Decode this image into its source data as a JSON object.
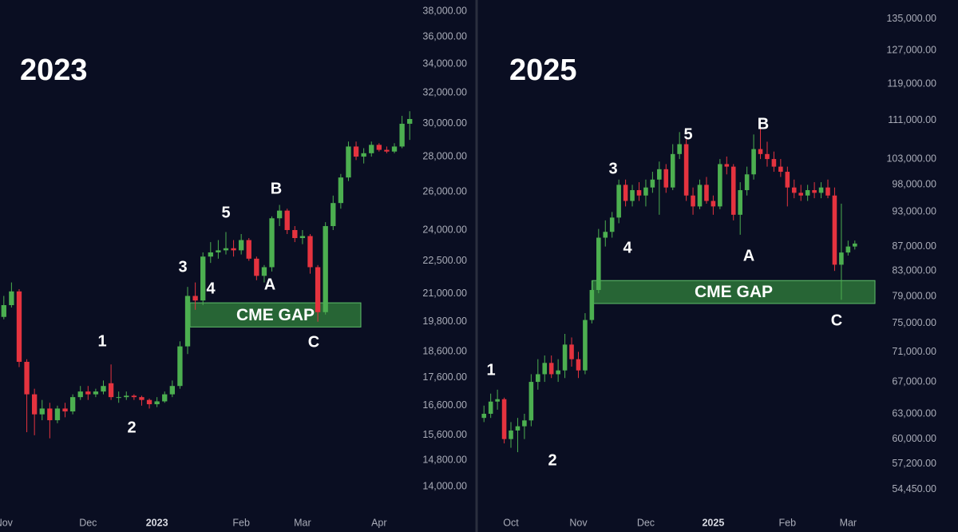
{
  "chart_data": [
    {
      "type": "candlestick",
      "title": "2023",
      "log_scale": true,
      "grid": false,
      "up_color": "#4caf50",
      "down_color": "#e5333f",
      "categories": [
        "Nov",
        null,
        null,
        null,
        null,
        null,
        null,
        null,
        null,
        null,
        null,
        "Dec",
        null,
        null,
        null,
        null,
        null,
        null,
        null,
        null,
        "2023",
        null,
        null,
        null,
        null,
        null,
        null,
        null,
        null,
        null,
        null,
        "Feb",
        null,
        null,
        null,
        null,
        null,
        null,
        null,
        "Mar",
        null,
        null,
        null,
        null,
        null,
        null,
        null,
        null,
        null,
        "Apr",
        null,
        null,
        null,
        null
      ],
      "open": [
        20000,
        20500,
        21100,
        18200,
        17000,
        16300,
        16500,
        16100,
        16500,
        16400,
        16900,
        17100,
        17000,
        17100,
        17400,
        16900,
        16900,
        16950,
        16900,
        16800,
        16650,
        16750,
        17000,
        17300,
        18800,
        20900,
        20700,
        22700,
        22900,
        23000,
        23100,
        23000,
        23500,
        22600,
        21800,
        22200,
        24600,
        25000,
        24000,
        23600,
        23700,
        22200,
        20200,
        24200,
        25400,
        26800,
        28600,
        28000,
        28200,
        28700,
        28400,
        28300,
        28600,
        30000
      ],
      "high": [
        20900,
        21500,
        21200,
        18300,
        17200,
        16800,
        16700,
        16600,
        16700,
        17000,
        17300,
        17300,
        17200,
        17500,
        18100,
        17100,
        17100,
        17000,
        16950,
        16850,
        16900,
        17100,
        17500,
        19000,
        21300,
        21500,
        22900,
        23400,
        23500,
        23900,
        23500,
        23800,
        23600,
        22700,
        22300,
        24700,
        25300,
        25100,
        24200,
        24000,
        23800,
        22300,
        24400,
        25800,
        27000,
        28900,
        28900,
        28500,
        28900,
        28800,
        28600,
        28800,
        30500,
        30800
      ],
      "low": [
        19900,
        20400,
        18000,
        15700,
        15600,
        16100,
        15500,
        16000,
        16200,
        16300,
        16800,
        16800,
        16900,
        17000,
        16800,
        16700,
        16800,
        16800,
        16600,
        16500,
        16550,
        16700,
        16900,
        17200,
        18500,
        20300,
        20500,
        22400,
        22600,
        22800,
        22700,
        22800,
        22500,
        21600,
        21500,
        22000,
        24200,
        23800,
        23400,
        23300,
        21900,
        19800,
        20100,
        24000,
        25100,
        26600,
        27800,
        27600,
        28000,
        28300,
        28200,
        28200,
        28500,
        29000
      ],
      "close": [
        20500,
        21100,
        18200,
        17000,
        16300,
        16500,
        16100,
        16500,
        16400,
        16900,
        17100,
        17000,
        17100,
        17300,
        16900,
        16900,
        16950,
        16900,
        16800,
        16650,
        16750,
        17000,
        17300,
        18800,
        20900,
        20700,
        22700,
        22900,
        23000,
        23100,
        23000,
        23500,
        22600,
        21800,
        22200,
        24600,
        25000,
        24000,
        23600,
        23700,
        22200,
        20200,
        24200,
        25400,
        26800,
        28600,
        28000,
        28200,
        28700,
        28400,
        28300,
        28600,
        30000,
        30300
      ],
      "ylim": [
        13300,
        38900
      ],
      "yticks": [
        {
          "value": 14000,
          "label": "14,000.00"
        },
        {
          "value": 14800,
          "label": "14,800.00"
        },
        {
          "value": 15600,
          "label": "15,600.00"
        },
        {
          "value": 16600,
          "label": "16,600.00"
        },
        {
          "value": 17600,
          "label": "17,600.00"
        },
        {
          "value": 18600,
          "label": "18,600.00"
        },
        {
          "value": 19800,
          "label": "19,800.00"
        },
        {
          "value": 21000,
          "label": "21,000.00"
        },
        {
          "value": 22500,
          "label": "22,500.00"
        },
        {
          "value": 24000,
          "label": "24,000.00"
        },
        {
          "value": 26000,
          "label": "26,000.00"
        },
        {
          "value": 28000,
          "label": "28,000.00"
        },
        {
          "value": 30000,
          "label": "30,000.00"
        },
        {
          "value": 32000,
          "label": "32,000.00"
        },
        {
          "value": 34000,
          "label": "34,000.00"
        },
        {
          "value": 36000,
          "label": "36,000.00"
        },
        {
          "value": 38000,
          "label": "38,000.00"
        }
      ],
      "annotations": [
        "1",
        "2",
        "3",
        "4",
        "5",
        "A",
        "B",
        "C"
      ],
      "gap": {
        "label": "CME GAP",
        "low": 19580,
        "high": 20600
      }
    },
    {
      "type": "candlestick",
      "title": "2025",
      "log_scale": true,
      "grid": false,
      "up_color": "#4caf50",
      "down_color": "#e5333f",
      "categories": [
        null,
        null,
        null,
        null,
        "Oct",
        null,
        null,
        null,
        null,
        null,
        null,
        null,
        null,
        null,
        "Nov",
        null,
        null,
        null,
        null,
        null,
        null,
        null,
        null,
        null,
        "Dec",
        null,
        null,
        null,
        null,
        null,
        null,
        null,
        null,
        null,
        "2025",
        null,
        null,
        null,
        null,
        null,
        null,
        null,
        null,
        null,
        null,
        "Feb",
        null,
        null,
        null,
        null,
        null,
        null,
        null,
        null,
        "Mar",
        null
      ],
      "open": [
        62500,
        63000,
        64500,
        64800,
        60000,
        61000,
        61500,
        62200,
        67000,
        68000,
        69500,
        68000,
        68500,
        72000,
        70000,
        68500,
        75500,
        80000,
        88500,
        89500,
        92000,
        98000,
        95000,
        97000,
        96000,
        97500,
        99000,
        101000,
        97500,
        104000,
        106000,
        96000,
        94000,
        98000,
        95000,
        94000,
        102000,
        101500,
        92500,
        97000,
        100000,
        105000,
        104000,
        103000,
        101500,
        100500,
        97500,
        96500,
        96000,
        97000,
        96500,
        97500,
        96000,
        84000,
        86000,
        87000
      ],
      "high": [
        64000,
        65500,
        66000,
        65000,
        62000,
        62500,
        63000,
        68000,
        70000,
        70500,
        70500,
        70000,
        73500,
        73000,
        71000,
        76500,
        81500,
        90000,
        91500,
        93000,
        99000,
        99000,
        98000,
        98500,
        99000,
        100500,
        102500,
        102000,
        106000,
        108500,
        107000,
        97500,
        99000,
        99500,
        96000,
        103000,
        103500,
        102000,
        98500,
        101500,
        108000,
        109500,
        106500,
        104500,
        103000,
        101500,
        99000,
        98000,
        98000,
        98500,
        98500,
        99000,
        97500,
        94500,
        88000,
        88000
      ],
      "low": [
        62000,
        62500,
        63500,
        59500,
        59000,
        58500,
        60000,
        61500,
        66000,
        67000,
        67500,
        67000,
        67500,
        69000,
        67500,
        68000,
        75000,
        79500,
        87000,
        88500,
        91000,
        94000,
        94000,
        95000,
        94000,
        96500,
        92500,
        96500,
        97000,
        103000,
        95000,
        92500,
        93500,
        94500,
        92500,
        93500,
        100000,
        91500,
        89000,
        96000,
        99000,
        103000,
        101500,
        100500,
        99500,
        94000,
        95500,
        95000,
        95000,
        95500,
        95500,
        95500,
        83000,
        78500,
        85500,
        86500
      ],
      "close": [
        63000,
        64500,
        64800,
        60000,
        61000,
        61500,
        62200,
        67000,
        68000,
        69500,
        68000,
        68500,
        72000,
        70000,
        68500,
        75500,
        80000,
        88500,
        89500,
        92000,
        98000,
        95000,
        97000,
        96000,
        97500,
        99000,
        101000,
        97500,
        104000,
        106000,
        96000,
        94000,
        98000,
        95000,
        94000,
        102000,
        101500,
        92500,
        97000,
        100000,
        105000,
        104000,
        103000,
        101500,
        100500,
        97500,
        96500,
        96000,
        97000,
        96500,
        97500,
        96000,
        84000,
        86000,
        87000,
        87500
      ],
      "ylim": [
        52200,
        140000
      ],
      "yticks": [
        {
          "value": 54450,
          "label": "54,450.00"
        },
        {
          "value": 57200,
          "label": "57,200.00"
        },
        {
          "value": 60000,
          "label": "60,000.00"
        },
        {
          "value": 63000,
          "label": "63,000.00"
        },
        {
          "value": 67000,
          "label": "67,000.00"
        },
        {
          "value": 71000,
          "label": "71,000.00"
        },
        {
          "value": 75000,
          "label": "75,000.00"
        },
        {
          "value": 79000,
          "label": "79,000.00"
        },
        {
          "value": 83000,
          "label": "83,000.00"
        },
        {
          "value": 87000,
          "label": "87,000.00"
        },
        {
          "value": 93000,
          "label": "93,000.00"
        },
        {
          "value": 98000,
          "label": "98,000.00"
        },
        {
          "value": 103000,
          "label": "103,000.00"
        },
        {
          "value": 111000,
          "label": "111,000.00"
        },
        {
          "value": 119000,
          "label": "119,000.00"
        },
        {
          "value": 127000,
          "label": "127,000.00"
        },
        {
          "value": 135000,
          "label": "135,000.00"
        }
      ],
      "annotations": [
        "1",
        "2",
        "3",
        "4",
        "5",
        "A",
        "B",
        "C"
      ],
      "gap": {
        "label": "CME GAP",
        "low": 77940,
        "high": 81470
      }
    }
  ]
}
